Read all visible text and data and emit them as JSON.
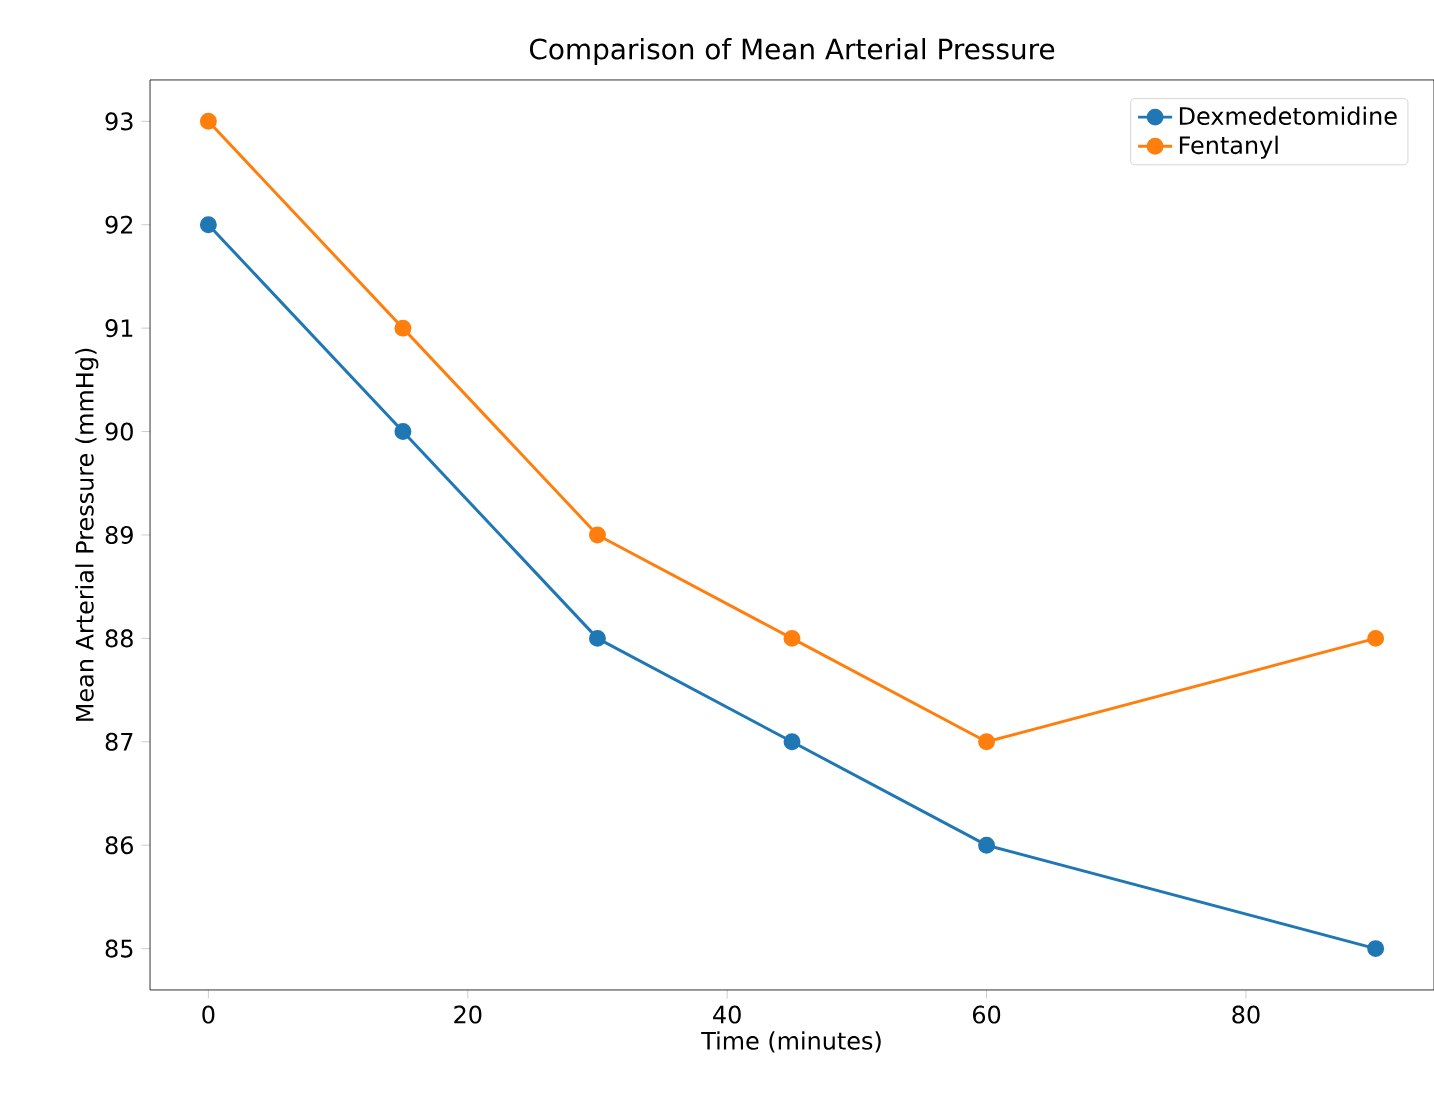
{
  "chart_data": {
    "type": "line",
    "title": "Comparison of Mean Arterial Pressure",
    "xlabel": "Time (minutes)",
    "ylabel": "Mean Arterial Pressure (mmHg)",
    "x": [
      0,
      15,
      30,
      45,
      60,
      90
    ],
    "series": [
      {
        "name": "Dexmedetomidine",
        "color": "#1f77b4",
        "values": [
          92,
          90,
          88,
          87,
          86,
          85
        ]
      },
      {
        "name": "Fentanyl",
        "color": "#ff7f0e",
        "values": [
          93,
          91,
          89,
          88,
          87,
          88
        ]
      }
    ],
    "xlim": [
      -4.5,
      94.5
    ],
    "ylim": [
      84.6,
      93.4
    ],
    "xticks": [
      0,
      20,
      40,
      60,
      80
    ],
    "yticks": [
      85,
      86,
      87,
      88,
      89,
      90,
      91,
      92,
      93
    ],
    "grid": false,
    "legend": "top right",
    "marker": "circle",
    "line_style": "solid"
  }
}
